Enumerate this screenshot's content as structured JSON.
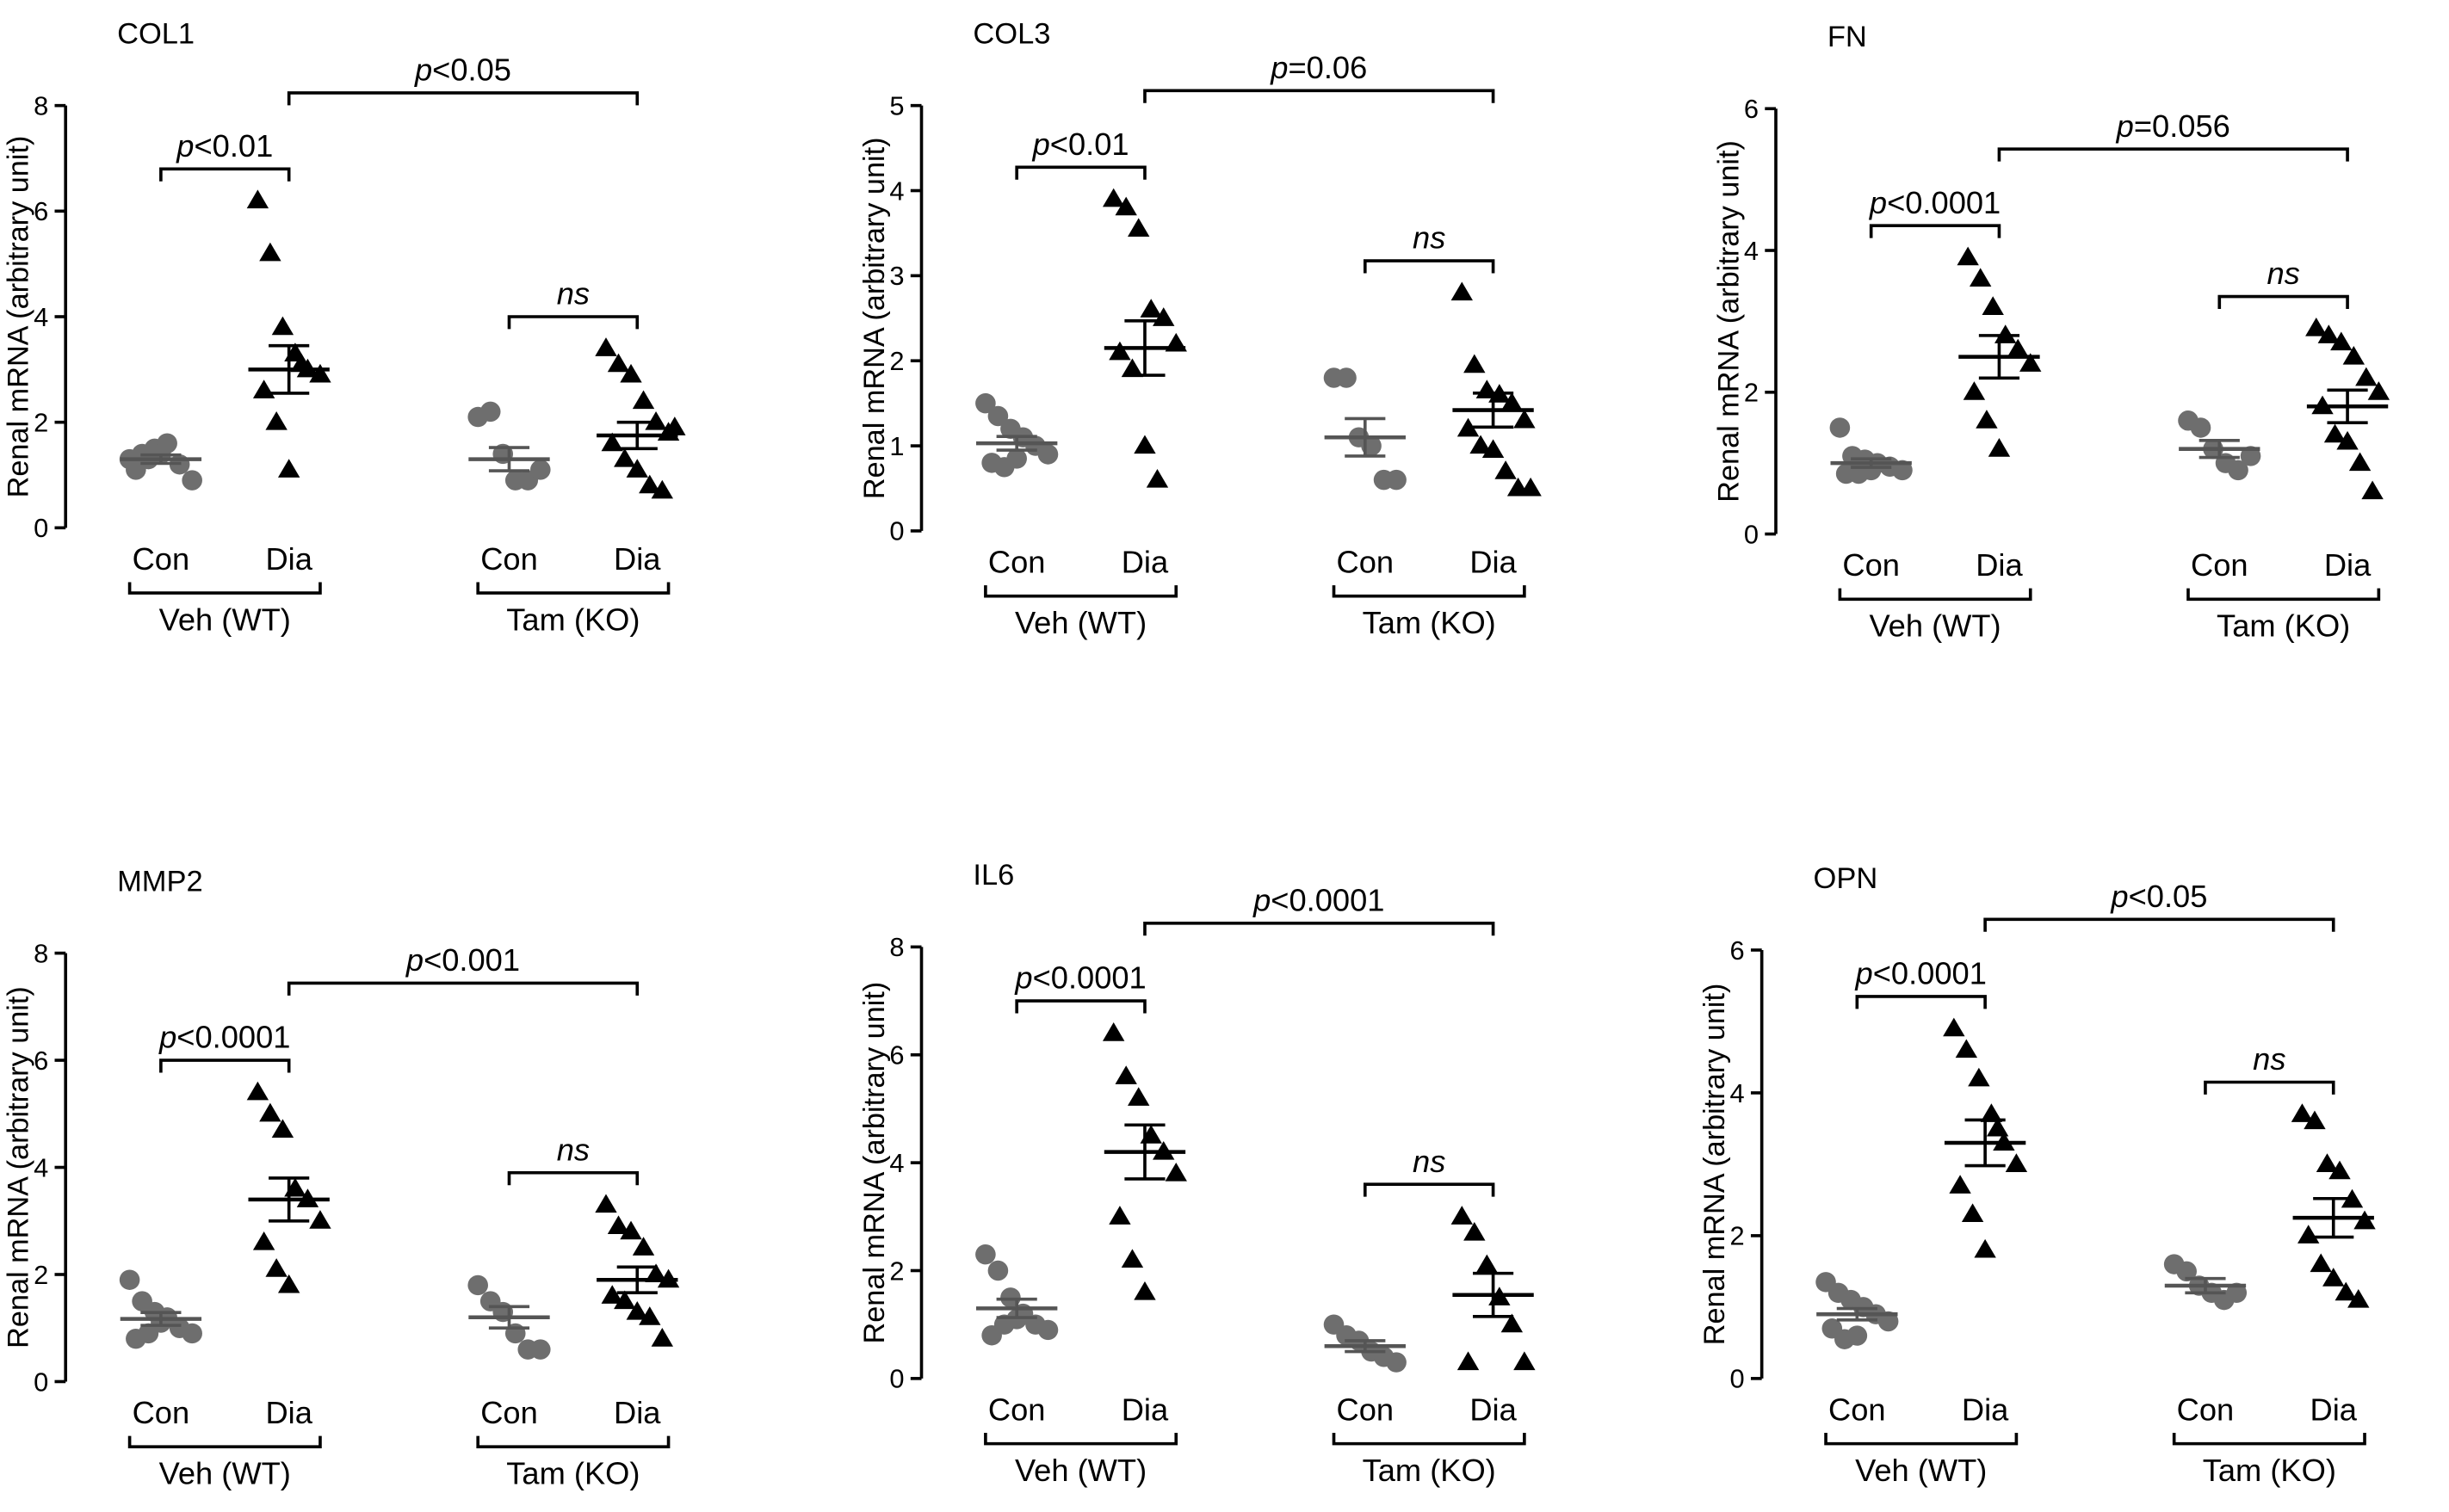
{
  "chart_data": [
    {
      "type": "dotplot",
      "title": "COL1",
      "ylabel": "Renal mRNA (arbitrary unit)",
      "ylim": [
        0,
        8
      ],
      "yticks": [
        0,
        2,
        4,
        6,
        8
      ],
      "categories": [
        "Con",
        "Dia",
        "Con",
        "Dia"
      ],
      "groups": [
        "Veh (WT)",
        "Tam (KO)"
      ],
      "markers": [
        "circle",
        "triangle",
        "circle",
        "triangle"
      ],
      "colors": [
        "#6e6e6e",
        "#000000",
        "#6e6e6e",
        "#000000"
      ],
      "points": [
        [
          1.3,
          1.4,
          1.5,
          1.6,
          1.2,
          0.9,
          1.1,
          1.3,
          1.4
        ],
        [
          6.2,
          5.2,
          3.8,
          3.3,
          3.0,
          2.9,
          2.6,
          2.0,
          1.1,
          3.1
        ],
        [
          2.1,
          2.2,
          1.4,
          0.9,
          0.9,
          1.1
        ],
        [
          3.4,
          3.1,
          2.9,
          2.4,
          2.0,
          1.8,
          1.6,
          1.3,
          1.1,
          0.8,
          0.7,
          1.9
        ]
      ],
      "means": [
        1.3,
        3.0,
        1.3,
        1.75
      ],
      "sems": [
        0.08,
        0.45,
        0.22,
        0.25
      ],
      "comparisons": [
        {
          "from": 0,
          "to": 1,
          "label": "p<0.01"
        },
        {
          "from": 2,
          "to": 3,
          "label": "ns"
        },
        {
          "from": 1,
          "to": 3,
          "label": "p<0.05"
        }
      ]
    },
    {
      "type": "dotplot",
      "title": "COL3",
      "ylabel": "Renal mRNA (arbitrary unit)",
      "ylim": [
        0,
        5
      ],
      "yticks": [
        0,
        1,
        2,
        3,
        4,
        5
      ],
      "categories": [
        "Con",
        "Dia",
        "Con",
        "Dia"
      ],
      "groups": [
        "Veh (WT)",
        "Tam (KO)"
      ],
      "markers": [
        "circle",
        "triangle",
        "circle",
        "triangle"
      ],
      "colors": [
        "#6e6e6e",
        "#000000",
        "#6e6e6e",
        "#000000"
      ],
      "points": [
        [
          1.5,
          1.35,
          1.2,
          1.1,
          1.0,
          0.9,
          0.8,
          0.75,
          0.85
        ],
        [
          3.9,
          3.8,
          3.55,
          2.6,
          2.5,
          2.2,
          2.1,
          1.9,
          1.0,
          0.6
        ],
        [
          1.8,
          1.8,
          1.1,
          1.0,
          0.6,
          0.6
        ],
        [
          2.8,
          1.95,
          1.65,
          1.6,
          1.5,
          1.3,
          1.2,
          1.0,
          0.95,
          0.7,
          0.5,
          0.5
        ]
      ],
      "means": [
        1.03,
        2.15,
        1.1,
        1.42
      ],
      "sems": [
        0.08,
        0.32,
        0.22,
        0.2
      ],
      "comparisons": [
        {
          "from": 0,
          "to": 1,
          "label": "p<0.01"
        },
        {
          "from": 2,
          "to": 3,
          "label": "ns"
        },
        {
          "from": 1,
          "to": 3,
          "label": "p=0.06"
        }
      ]
    },
    {
      "type": "dotplot",
      "title": "FN",
      "ylabel": "Renal mRNA (arbitrary unit)",
      "ylim": [
        0,
        6
      ],
      "yticks": [
        0,
        2,
        4,
        6
      ],
      "categories": [
        "Con",
        "Dia",
        "Con",
        "Dia"
      ],
      "groups": [
        "Veh (WT)",
        "Tam (KO)"
      ],
      "markers": [
        "circle",
        "triangle",
        "circle",
        "triangle"
      ],
      "colors": [
        "#6e6e6e",
        "#000000",
        "#6e6e6e",
        "#000000"
      ],
      "points": [
        [
          1.5,
          1.1,
          1.05,
          1.0,
          0.95,
          0.9,
          0.85,
          0.85,
          0.9
        ],
        [
          3.9,
          3.6,
          3.2,
          2.8,
          2.6,
          2.4,
          2.0,
          1.6,
          1.2
        ],
        [
          1.6,
          1.5,
          1.2,
          1.0,
          0.9,
          1.1
        ],
        [
          2.9,
          2.8,
          2.7,
          2.5,
          2.2,
          2.0,
          1.8,
          1.4,
          1.3,
          1.0,
          0.6
        ]
      ],
      "means": [
        1.0,
        2.5,
        1.2,
        1.8
      ],
      "sems": [
        0.06,
        0.3,
        0.12,
        0.23
      ],
      "comparisons": [
        {
          "from": 0,
          "to": 1,
          "label": "p<0.0001"
        },
        {
          "from": 2,
          "to": 3,
          "label": "ns"
        },
        {
          "from": 1,
          "to": 3,
          "label": "p=0.056"
        }
      ]
    },
    {
      "type": "dotplot",
      "title": "MMP2",
      "ylabel": "Renal mRNA (arbitrary unit)",
      "ylim": [
        0,
        8
      ],
      "yticks": [
        0,
        2,
        4,
        6,
        8
      ],
      "categories": [
        "Con",
        "Dia",
        "Con",
        "Dia"
      ],
      "groups": [
        "Veh (WT)",
        "Tam (KO)"
      ],
      "markers": [
        "circle",
        "triangle",
        "circle",
        "triangle"
      ],
      "colors": [
        "#6e6e6e",
        "#000000",
        "#6e6e6e",
        "#000000"
      ],
      "points": [
        [
          1.9,
          1.5,
          1.3,
          1.2,
          1.0,
          0.9,
          0.8,
          0.9,
          1.1
        ],
        [
          5.4,
          5.0,
          4.7,
          3.6,
          3.4,
          3.0,
          2.6,
          2.1,
          1.8
        ],
        [
          1.8,
          1.5,
          1.3,
          0.9,
          0.6,
          0.6
        ],
        [
          3.3,
          2.9,
          2.8,
          2.5,
          2.0,
          1.9,
          1.6,
          1.5,
          1.3,
          1.2,
          0.8
        ]
      ],
      "means": [
        1.17,
        3.4,
        1.2,
        1.9
      ],
      "sems": [
        0.12,
        0.4,
        0.2,
        0.24
      ],
      "comparisons": [
        {
          "from": 0,
          "to": 1,
          "label": "p<0.0001"
        },
        {
          "from": 2,
          "to": 3,
          "label": "ns"
        },
        {
          "from": 1,
          "to": 3,
          "label": "p<0.001"
        }
      ]
    },
    {
      "type": "dotplot",
      "title": "IL6",
      "ylabel": "Renal mRNA (arbitrary unit)",
      "ylim": [
        0,
        8
      ],
      "yticks": [
        0,
        2,
        4,
        6,
        8
      ],
      "categories": [
        "Con",
        "Dia",
        "Con",
        "Dia"
      ],
      "groups": [
        "Veh (WT)",
        "Tam (KO)"
      ],
      "markers": [
        "circle",
        "triangle",
        "circle",
        "triangle"
      ],
      "colors": [
        "#6e6e6e",
        "#000000",
        "#6e6e6e",
        "#000000"
      ],
      "points": [
        [
          2.3,
          2.0,
          1.5,
          1.2,
          1.0,
          0.9,
          0.8,
          1.0,
          1.1
        ],
        [
          6.4,
          5.6,
          5.2,
          4.5,
          4.2,
          3.8,
          3.0,
          2.2,
          1.6
        ],
        [
          1.0,
          0.8,
          0.7,
          0.5,
          0.4,
          0.3
        ],
        [
          3.0,
          2.7,
          2.1,
          1.5,
          1.0,
          0.3,
          0.3
        ]
      ],
      "means": [
        1.3,
        4.2,
        0.6,
        1.55
      ],
      "sems": [
        0.17,
        0.5,
        0.1,
        0.4
      ],
      "comparisons": [
        {
          "from": 0,
          "to": 1,
          "label": "p<0.0001"
        },
        {
          "from": 2,
          "to": 3,
          "label": "ns"
        },
        {
          "from": 1,
          "to": 3,
          "label": "p<0.0001"
        }
      ]
    },
    {
      "type": "dotplot",
      "title": "OPN",
      "ylabel": "Renal mRNA (arbitrary unit)",
      "ylim": [
        0,
        6
      ],
      "yticks": [
        0,
        2,
        4,
        6
      ],
      "categories": [
        "Con",
        "Dia",
        "Con",
        "Dia"
      ],
      "groups": [
        "Veh (WT)",
        "Tam (KO)"
      ],
      "markers": [
        "circle",
        "triangle",
        "circle",
        "triangle"
      ],
      "colors": [
        "#6e6e6e",
        "#000000",
        "#6e6e6e",
        "#000000"
      ],
      "points": [
        [
          1.35,
          1.2,
          1.1,
          1.0,
          0.9,
          0.8,
          0.7,
          0.55,
          0.6
        ],
        [
          4.9,
          4.6,
          4.2,
          3.7,
          3.3,
          3.0,
          2.7,
          2.3,
          1.8,
          3.5
        ],
        [
          1.6,
          1.5,
          1.3,
          1.2,
          1.1,
          1.2
        ],
        [
          3.7,
          3.6,
          3.0,
          2.9,
          2.5,
          2.2,
          2.0,
          1.6,
          1.4,
          1.2,
          1.1
        ]
      ],
      "means": [
        0.9,
        3.3,
        1.3,
        2.25
      ],
      "sems": [
        0.08,
        0.32,
        0.1,
        0.27
      ],
      "comparisons": [
        {
          "from": 0,
          "to": 1,
          "label": "p<0.0001"
        },
        {
          "from": 2,
          "to": 3,
          "label": "ns"
        },
        {
          "from": 1,
          "to": 3,
          "label": "p<0.05"
        }
      ]
    }
  ]
}
